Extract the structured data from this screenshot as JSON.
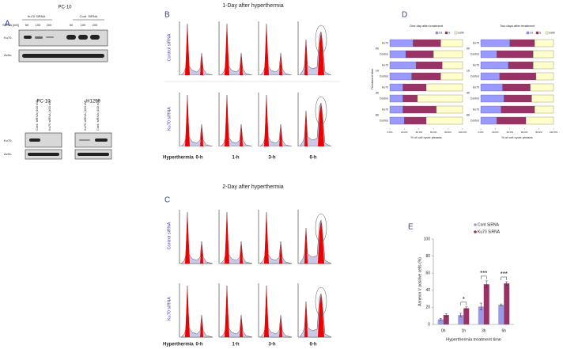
{
  "panel_a": {
    "label": "A",
    "cell_line_top": "PC-10",
    "group_1": "Ku70 SiRNA",
    "group_2": "Cont. SiRNA",
    "dose_label": "SiRNA [nM]",
    "doses": [
      50,
      100,
      200,
      50,
      100,
      200
    ],
    "band_ku70": "Ku70-",
    "band_actin": "Actin-",
    "cell_line_1": "PC-10",
    "cell_line_2": "H1299",
    "lanes": [
      "Cont. siRNA (100 nM)",
      "Ku70 siRNA (100 nM)",
      "Ku70 siRNA (100 nM)",
      "Cont. siRNA (100 nM)"
    ],
    "band_ku70_2": "Ku70-",
    "band_actin_2": "Actin-"
  },
  "panel_b": {
    "label": "B",
    "title": "1-Day after hyperthermia",
    "rows": [
      "Control siRNA",
      "Ku70 siRNA"
    ],
    "row_header": "Hyperthermia",
    "times": [
      "0-h",
      "1-h",
      "3-h",
      "6-h"
    ]
  },
  "panel_c": {
    "label": "C",
    "title": "2-Day after hyperthermia",
    "rows": [
      "Control siRNA",
      "Ku70 siRNA"
    ],
    "row_header": "Hyperthermia",
    "times": [
      "0-h",
      "1-h",
      "3-h",
      "6-h"
    ]
  },
  "panel_d": {
    "label": "D"
  },
  "panel_e": {
    "label": "E"
  },
  "chart_data": [
    {
      "type": "stacked-hbar",
      "title": "One day after treatment",
      "ylabel": "Treatment time",
      "xlabel": "% of cell cycle phases",
      "categories": [
        "Ku70",
        "Control",
        "Ku70",
        "Control",
        "Ku70",
        "Control",
        "Ku70",
        "Control"
      ],
      "groups": [
        "0h",
        "1h",
        "3h",
        "6h"
      ],
      "series": [
        {
          "name": "G1",
          "color": "#9999ff",
          "values": [
            32,
            22,
            36,
            30,
            18,
            18,
            18,
            20
          ]
        },
        {
          "name": "S",
          "color": "#993366",
          "values": [
            38,
            38,
            36,
            40,
            32,
            20,
            46,
            30
          ]
        },
        {
          "name": "G2M",
          "color": "#ffffcc",
          "values": [
            30,
            40,
            28,
            30,
            50,
            62,
            36,
            50
          ]
        }
      ],
      "xlim": [
        0,
        100
      ],
      "xticks": [
        {
          "value": 0,
          "label": "0.0%"
        },
        {
          "value": 20,
          "label": "20.0%"
        },
        {
          "value": 40,
          "label": "40.0%"
        },
        {
          "value": 60,
          "label": "60.0%"
        },
        {
          "value": 80,
          "label": "80.0%"
        },
        {
          "value": 100,
          "label": "100.0%"
        }
      ]
    },
    {
      "type": "stacked-hbar",
      "title": "Two days after treatment",
      "xlabel": "% of cell cycle phases",
      "categories": [
        "Ku70",
        "Control",
        "Ku70",
        "Control",
        "Ku70",
        "Control",
        "Ku70",
        "Control"
      ],
      "groups": [
        "0h",
        "1h",
        "3h",
        "6h"
      ],
      "series": [
        {
          "name": "G1",
          "color": "#9999ff",
          "values": [
            40,
            22,
            38,
            26,
            30,
            32,
            28,
            22
          ]
        },
        {
          "name": "S",
          "color": "#993366",
          "values": [
            34,
            50,
            34,
            50,
            38,
            38,
            46,
            40
          ]
        },
        {
          "name": "G2M",
          "color": "#ffffcc",
          "values": [
            26,
            28,
            28,
            24,
            32,
            30,
            26,
            38
          ]
        }
      ],
      "xlim": [
        0,
        100
      ],
      "xticks": [
        {
          "value": 0,
          "label": "0.0%"
        },
        {
          "value": 20,
          "label": "20.0%"
        },
        {
          "value": 40,
          "label": "40.0%"
        },
        {
          "value": 60,
          "label": "60.0%"
        },
        {
          "value": 80,
          "label": "80.0%"
        },
        {
          "value": 100,
          "label": "100.0%"
        }
      ]
    },
    {
      "type": "bar",
      "ylabel": "Annexin V positive cells (%)",
      "xlabel": "Hyperthermia treatment time",
      "categories": [
        "0h",
        "1h",
        "3h",
        "6h"
      ],
      "series": [
        {
          "name": "Cont SiRNA",
          "color": "#9999e6",
          "values": [
            6,
            11,
            21,
            23
          ],
          "errors": [
            1,
            2,
            4,
            1
          ]
        },
        {
          "name": "Ku70 SiRNA",
          "color": "#993366",
          "values": [
            11,
            19,
            47,
            48
          ],
          "errors": [
            1.5,
            1.5,
            4,
            2
          ]
        }
      ],
      "annotations": [
        {
          "text": "*",
          "x": "1h"
        },
        {
          "text": "***",
          "x": "3h"
        },
        {
          "text": "***",
          "x": "6h"
        }
      ],
      "ylim": [
        0,
        100
      ],
      "yticks": [
        0,
        20,
        40,
        60,
        80,
        100
      ]
    }
  ]
}
